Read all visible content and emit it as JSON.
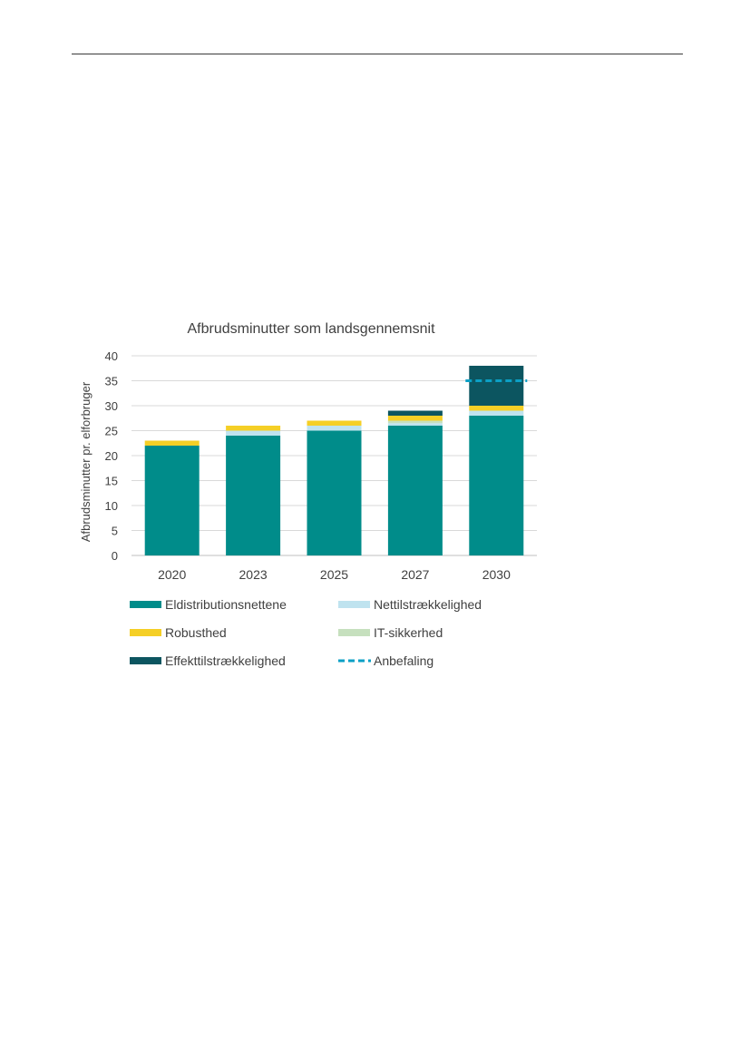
{
  "chart_data": {
    "type": "bar",
    "stacked": true,
    "title": "Afbrudsminutter som landsgennemsnit",
    "ylabel": "Afbrudsminutter pr. elforbruger",
    "xlabel": "",
    "ylim": [
      0,
      40
    ],
    "yticks": [
      0,
      5,
      10,
      15,
      20,
      25,
      30,
      35,
      40
    ],
    "grid": true,
    "legend_position": "bottom",
    "categories": [
      "2020",
      "2023",
      "2025",
      "2027",
      "2030"
    ],
    "series": [
      {
        "name": "Eldistributionsnettene",
        "color": "#008C8A",
        "values": [
          22,
          24,
          25,
          26,
          28
        ]
      },
      {
        "name": "Nettilstrækkelighed",
        "color": "#BFE3EF",
        "values": [
          0,
          1,
          1,
          0.5,
          1
        ]
      },
      {
        "name": "IT-sikkerhed",
        "color": "#C6E0BE",
        "values": [
          0,
          0,
          0,
          0.5,
          0
        ]
      },
      {
        "name": "Robusthed",
        "color": "#F5CF26",
        "values": [
          1,
          1,
          1,
          1,
          1
        ]
      },
      {
        "name": "Effekttilstrækkelighed",
        "color": "#0C5560",
        "values": [
          0,
          0,
          0,
          1,
          8
        ]
      }
    ],
    "reference_line": {
      "name": "Anbefaling",
      "value": 35,
      "category": "2030",
      "color": "#0BA0C6",
      "style": "dashed"
    },
    "legend_order": [
      "Eldistributionsnettene",
      "Nettilstrækkelighed",
      "Robusthed",
      "IT-sikkerhed",
      "Effekttilstrækkelighed",
      "Anbefaling"
    ]
  }
}
